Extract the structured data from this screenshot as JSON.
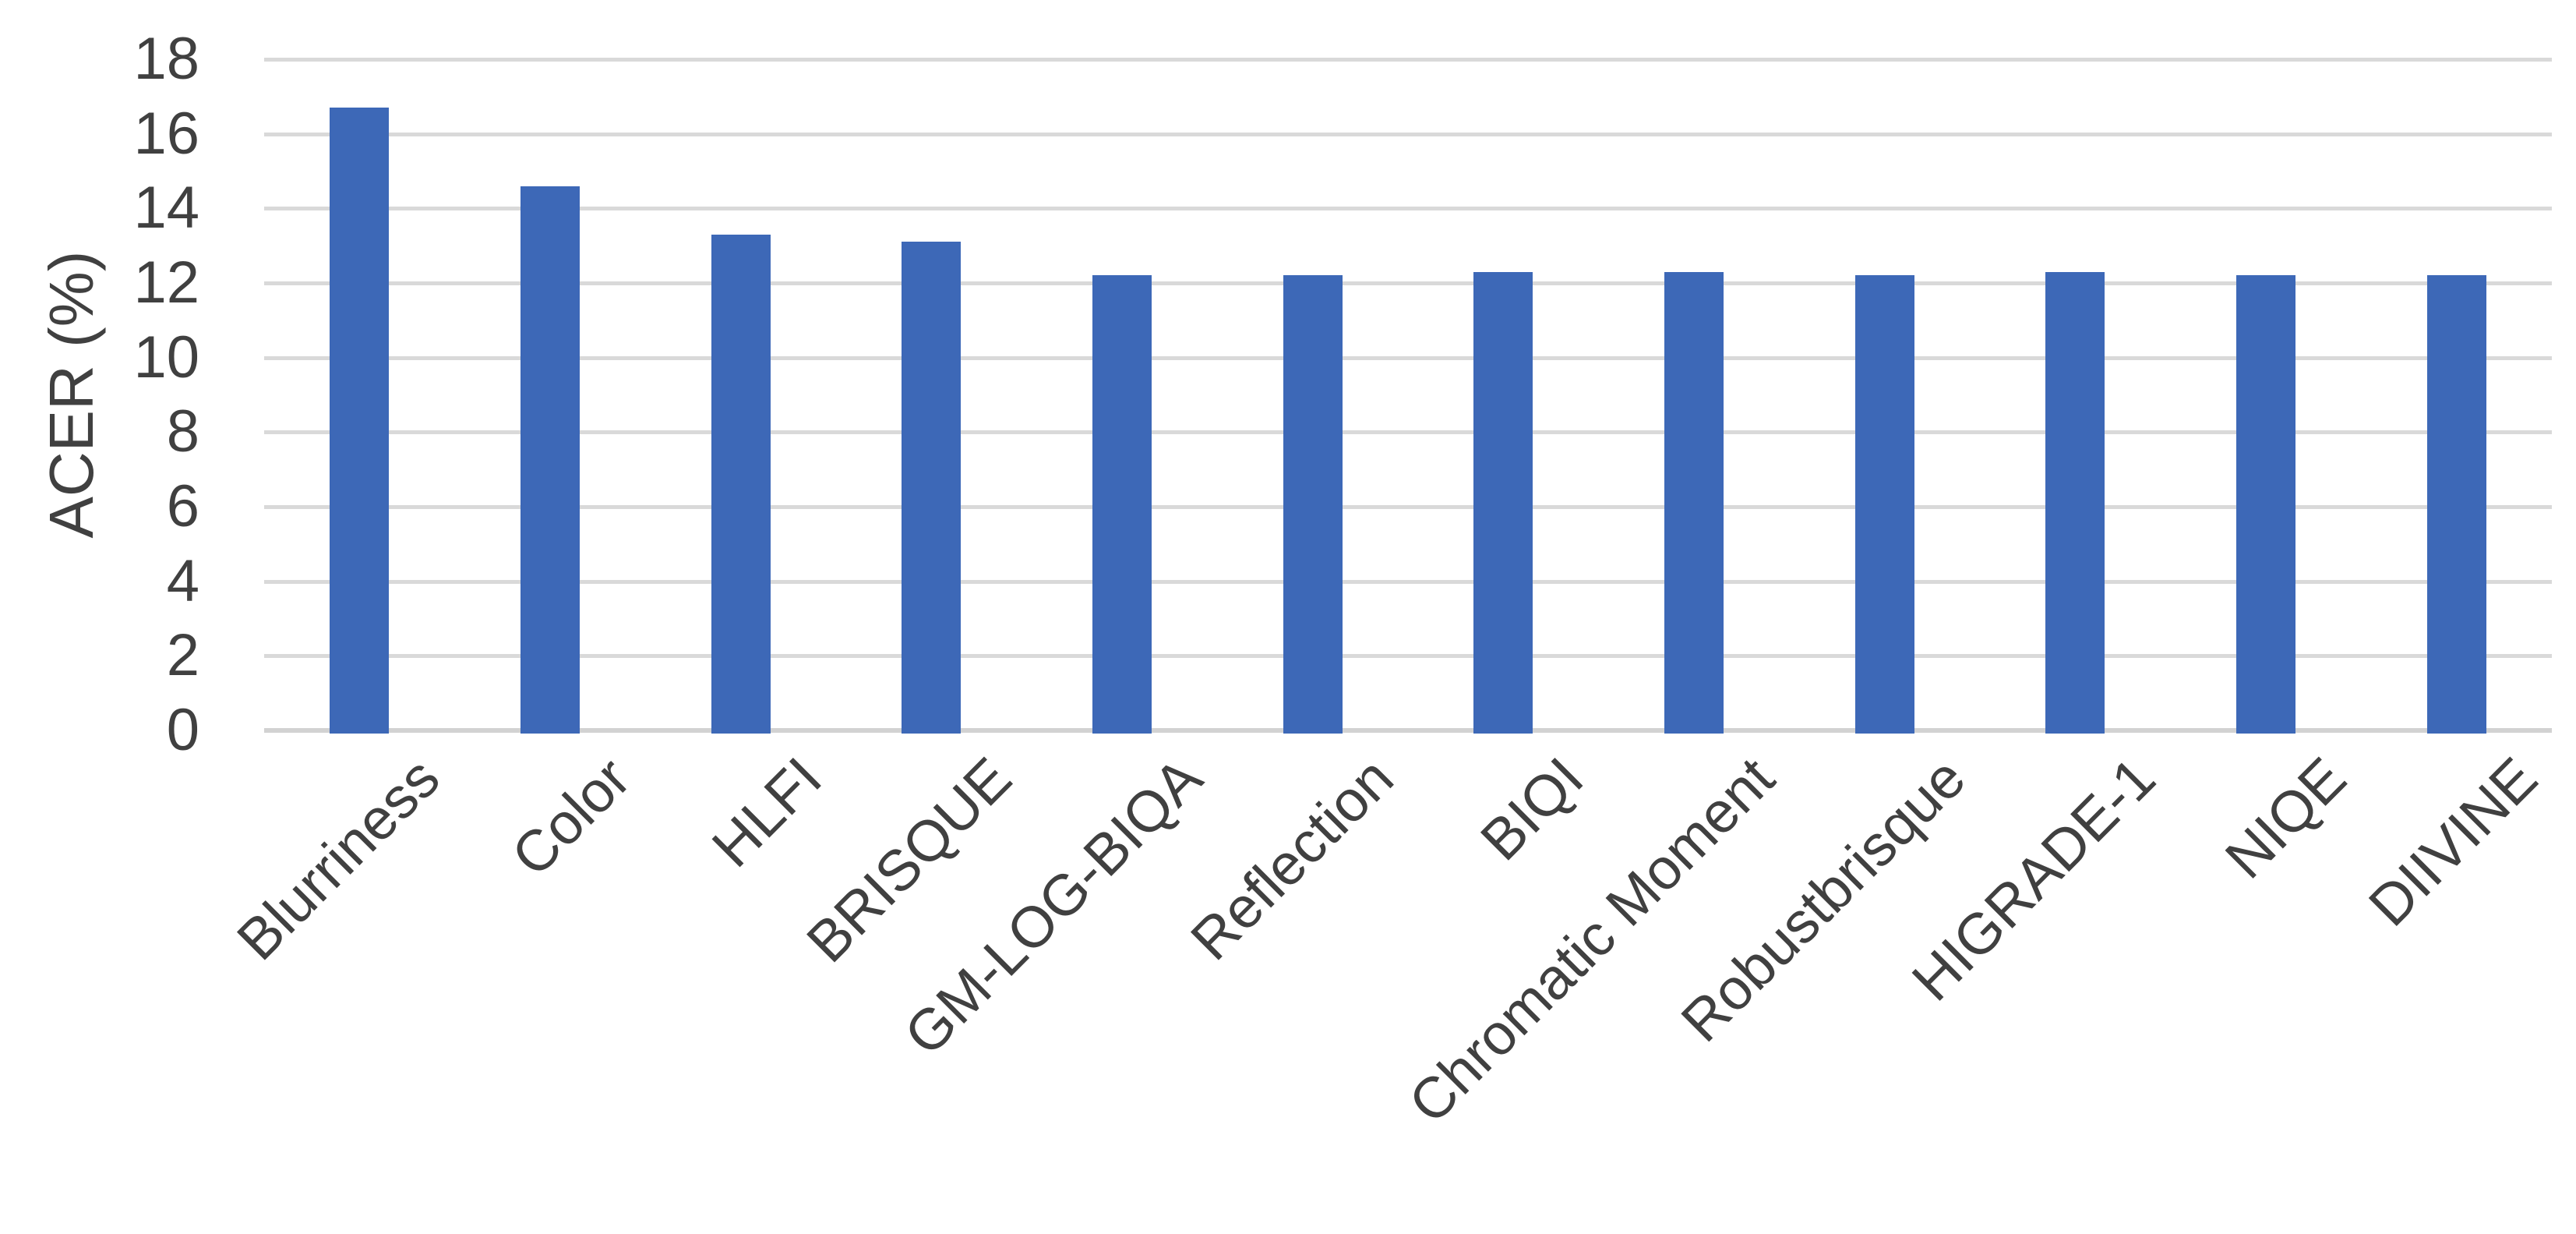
{
  "chart_data": {
    "type": "bar",
    "title": "",
    "xlabel": "",
    "ylabel": "ACER (%)",
    "categories": [
      "Blurriness",
      "Color",
      "HLFI",
      "BRISQUE",
      "GM-LOG-BIQA",
      "Reflection",
      "BIQI",
      "Chromatic Moment",
      "Robustbrisque",
      "HIGRADE-1",
      "NIQE",
      "DIIVINE"
    ],
    "values": [
      16.7,
      14.6,
      13.3,
      13.1,
      12.2,
      12.2,
      12.3,
      12.3,
      12.2,
      12.3,
      12.2,
      12.2
    ],
    "ylim": [
      0,
      18
    ],
    "ytick_step": 2,
    "ytick_labels": [
      "0",
      "2",
      "4",
      "6",
      "8",
      "10",
      "12",
      "14",
      "16",
      "18"
    ],
    "grid": true,
    "legend": "none",
    "bar_color": "#3D68B7",
    "gridline_color": "#D9D9D9",
    "axis_line_color": "#D2D2D2",
    "text_color": "#404040"
  }
}
